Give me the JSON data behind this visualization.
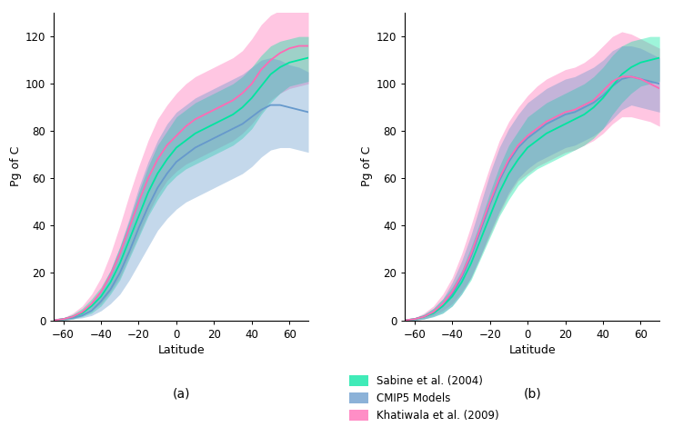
{
  "latitudes": [
    -65,
    -60,
    -55,
    -50,
    -45,
    -40,
    -35,
    -30,
    -25,
    -20,
    -15,
    -10,
    -5,
    0,
    5,
    10,
    15,
    20,
    25,
    30,
    35,
    40,
    45,
    50,
    55,
    60,
    65,
    70
  ],
  "panel_a": {
    "sabine_center": [
      0,
      0.5,
      1.5,
      3,
      6,
      10,
      16,
      24,
      34,
      44,
      54,
      62,
      68,
      73,
      76,
      79,
      81,
      83,
      85,
      87,
      90,
      94,
      99,
      104,
      107,
      109,
      110,
      111
    ],
    "sabine_upper": [
      0,
      1,
      2.5,
      5,
      9,
      14,
      21,
      31,
      42,
      54,
      65,
      74,
      80,
      86,
      89,
      92,
      94,
      96,
      98,
      100,
      103,
      107,
      112,
      116,
      118,
      119,
      120,
      120
    ],
    "sabine_lower": [
      0,
      0,
      0.5,
      1.5,
      3,
      6,
      11,
      17,
      26,
      35,
      44,
      51,
      57,
      61,
      64,
      66,
      68,
      70,
      72,
      74,
      77,
      81,
      87,
      92,
      96,
      99,
      100,
      101
    ],
    "cmip5_center": [
      0,
      0.5,
      1,
      2,
      4,
      8,
      13,
      20,
      29,
      39,
      48,
      56,
      62,
      67,
      70,
      73,
      75,
      77,
      79,
      81,
      83,
      86,
      89,
      91,
      91,
      90,
      89,
      88
    ],
    "cmip5_upper": [
      0,
      1,
      2,
      4,
      7,
      13,
      21,
      31,
      43,
      56,
      67,
      76,
      83,
      88,
      91,
      94,
      96,
      98,
      100,
      102,
      104,
      107,
      110,
      111,
      110,
      108,
      107,
      105
    ],
    "cmip5_lower": [
      0,
      0,
      0.5,
      1,
      2,
      4,
      7,
      11,
      17,
      24,
      31,
      38,
      43,
      47,
      50,
      52,
      54,
      56,
      58,
      60,
      62,
      65,
      69,
      72,
      73,
      73,
      72,
      71
    ],
    "khatiwala_center": [
      0,
      0.5,
      1.5,
      3.5,
      7,
      12,
      19,
      28,
      39,
      50,
      60,
      68,
      74,
      78,
      82,
      85,
      87,
      89,
      91,
      93,
      96,
      100,
      106,
      110,
      113,
      115,
      116,
      116
    ],
    "khatiwala_upper": [
      0,
      1,
      3,
      6,
      11,
      18,
      28,
      40,
      53,
      65,
      76,
      85,
      91,
      96,
      100,
      103,
      105,
      107,
      109,
      111,
      114,
      119,
      125,
      129,
      131,
      132,
      132,
      132
    ],
    "khatiwala_lower": [
      0,
      0,
      0.5,
      2,
      4,
      7,
      12,
      18,
      27,
      36,
      45,
      53,
      59,
      63,
      66,
      68,
      70,
      72,
      74,
      76,
      79,
      83,
      88,
      93,
      96,
      98,
      99,
      100
    ]
  },
  "panel_b": {
    "sabine_center": [
      0,
      0.5,
      1.5,
      3,
      6,
      10,
      16,
      24,
      34,
      44,
      54,
      62,
      68,
      73,
      76,
      79,
      81,
      83,
      85,
      87,
      90,
      94,
      99,
      104,
      107,
      109,
      110,
      111
    ],
    "sabine_upper": [
      0,
      1,
      2.5,
      5,
      9,
      14,
      21,
      31,
      42,
      54,
      65,
      74,
      80,
      86,
      89,
      92,
      94,
      96,
      98,
      100,
      103,
      107,
      112,
      116,
      118,
      119,
      120,
      120
    ],
    "sabine_lower": [
      0,
      0,
      0.5,
      1.5,
      3,
      6,
      11,
      17,
      26,
      35,
      44,
      51,
      57,
      61,
      64,
      66,
      68,
      70,
      72,
      74,
      77,
      81,
      87,
      92,
      96,
      99,
      100,
      101
    ],
    "cmip5_center": [
      0,
      0.5,
      1.5,
      3,
      6,
      11,
      18,
      27,
      38,
      49,
      59,
      67,
      73,
      77,
      80,
      83,
      85,
      87,
      88,
      90,
      92,
      95,
      99,
      102,
      103,
      102,
      101,
      100
    ],
    "cmip5_upper": [
      0,
      1,
      2.5,
      5,
      9,
      16,
      25,
      36,
      49,
      62,
      73,
      81,
      87,
      92,
      95,
      98,
      100,
      102,
      103,
      105,
      107,
      110,
      114,
      116,
      116,
      115,
      113,
      111
    ],
    "cmip5_lower": [
      0,
      0,
      0.5,
      1.5,
      3,
      6,
      11,
      18,
      27,
      37,
      46,
      54,
      60,
      64,
      67,
      69,
      71,
      73,
      74,
      76,
      78,
      81,
      85,
      89,
      91,
      90,
      89,
      88
    ],
    "khatiwala_center": [
      0,
      0.5,
      1.5,
      3.5,
      7,
      12,
      19,
      28,
      39,
      50,
      60,
      68,
      74,
      78,
      81,
      84,
      86,
      88,
      89,
      91,
      93,
      97,
      101,
      103,
      103,
      102,
      100,
      98
    ],
    "khatiwala_upper": [
      0,
      1,
      3,
      6,
      11,
      18,
      28,
      40,
      53,
      65,
      76,
      84,
      90,
      95,
      99,
      102,
      104,
      106,
      107,
      109,
      112,
      116,
      120,
      122,
      121,
      119,
      117,
      115
    ],
    "khatiwala_lower": [
      0,
      0,
      0.5,
      2,
      4,
      7,
      12,
      18,
      27,
      36,
      45,
      53,
      59,
      62,
      65,
      67,
      69,
      71,
      72,
      74,
      76,
      79,
      83,
      86,
      86,
      85,
      84,
      82
    ]
  },
  "sabine_color": "#00E5A0",
  "sabine_fill": "#00E5A0",
  "cmip5_color": "#6699CC",
  "cmip5_fill": "#6699CC",
  "khatiwala_color": "#FF69B4",
  "khatiwala_fill": "#FF69B4",
  "fill_alpha": 0.38,
  "line_width": 1.3,
  "ylabel": "Pg of C",
  "xlabel": "Latitude",
  "ylim": [
    0,
    130
  ],
  "xlim": [
    -65,
    70
  ],
  "xticks": [
    -60,
    -40,
    -20,
    0,
    20,
    40,
    60
  ],
  "yticks": [
    0,
    20,
    40,
    60,
    80,
    100,
    120
  ],
  "label_sabine": "Sabine et al. (2004)",
  "label_cmip5": "CMIP5 Models",
  "label_khatiwala": "Khatiwala et al. (2009)",
  "panel_a_label": "(a)",
  "panel_b_label": "(b)"
}
